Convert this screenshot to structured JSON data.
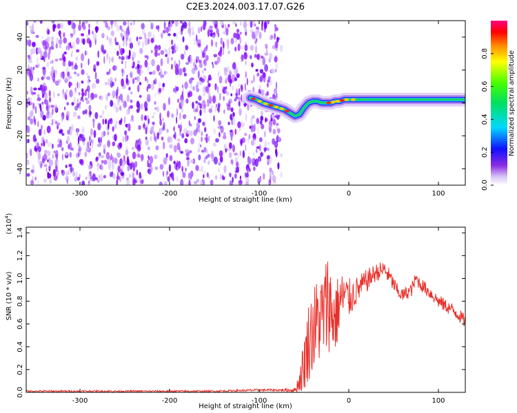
{
  "title": "C2E3.2024.003.17.07.G26",
  "chart_data": [
    {
      "type": "heatmap",
      "xlabel": "Height of straight line (km)",
      "ylabel": "Frequency (Hz)",
      "xlim": [
        -360,
        130
      ],
      "ylim": [
        -50,
        50
      ],
      "xticks": [
        -300,
        -200,
        -100,
        0,
        100
      ],
      "yticks": [
        -40,
        -20,
        0,
        20,
        40
      ],
      "noise_region": [
        -360,
        -75
      ],
      "signal_trace": {
        "x": [
          -110,
          -103,
          -96,
          -90,
          -84,
          -78,
          -72,
          -66,
          -60,
          -55,
          -50,
          -45,
          -40,
          -35,
          -30,
          -25,
          -20,
          -15,
          -10,
          -5,
          0,
          10,
          20,
          40,
          60,
          80,
          100,
          130
        ],
        "y": [
          3,
          2,
          0,
          -1,
          -2,
          -3,
          -4,
          -6,
          -8,
          -7,
          -3,
          0,
          1,
          1,
          0,
          0,
          0,
          1,
          1,
          2,
          2,
          2,
          2,
          2,
          2,
          2,
          2,
          2
        ]
      },
      "colorbar": {
        "label": "Normalized spectral amplitude",
        "range": [
          0.0,
          1.0
        ],
        "ticks": [
          "0.0",
          "0.2",
          "0.4",
          "0.6",
          "0.8"
        ]
      }
    },
    {
      "type": "line",
      "xlabel": "Height of straight line (km)",
      "ylabel": "SNR (10 * v/v)",
      "yscale_label": "(x10",
      "yscale_exp": "4",
      "yscale_close": ")",
      "xlim": [
        -360,
        130
      ],
      "ylim": [
        0.0,
        1.45
      ],
      "xticks": [
        -300,
        -200,
        -100,
        0,
        100
      ],
      "yticks": [
        "0.0",
        "0.2",
        "0.4",
        "0.6",
        "0.8",
        "1.0",
        "1.2",
        "1.4"
      ],
      "series": [
        {
          "color": "#e8302a",
          "x": [
            -360,
            -300,
            -250,
            -200,
            -150,
            -100,
            -80,
            -60,
            -55,
            -50,
            -45,
            -40,
            -35,
            -30,
            -25,
            -22,
            -20,
            -15,
            -10,
            -5,
            0,
            10,
            20,
            30,
            40,
            50,
            55,
            60,
            70,
            75,
            80,
            90,
            100,
            110,
            120,
            130
          ],
          "y": [
            0.01,
            0.01,
            0.01,
            0.01,
            0.01,
            0.02,
            0.02,
            0.02,
            0.1,
            0.25,
            0.45,
            0.55,
            0.62,
            0.66,
            0.75,
            0.85,
            0.7,
            0.65,
            0.8,
            0.85,
            0.82,
            0.9,
            0.98,
            1.05,
            1.08,
            0.95,
            0.88,
            0.85,
            0.9,
            1.0,
            0.95,
            0.88,
            0.8,
            0.75,
            0.7,
            0.62
          ],
          "noise": [
            0.008,
            0.008,
            0.008,
            0.008,
            0.008,
            0.01,
            0.01,
            0.02,
            0.1,
            0.25,
            0.35,
            0.4,
            0.4,
            0.4,
            0.45,
            0.5,
            0.4,
            0.35,
            0.25,
            0.22,
            0.18,
            0.12,
            0.1,
            0.08,
            0.08,
            0.07,
            0.06,
            0.06,
            0.06,
            0.06,
            0.06,
            0.06,
            0.06,
            0.06,
            0.06,
            0.06
          ]
        }
      ]
    }
  ]
}
